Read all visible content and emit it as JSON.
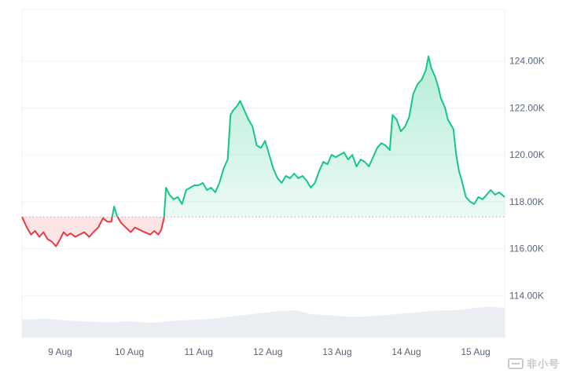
{
  "chart_data": {
    "type": "area",
    "baseline": 117350,
    "ylim": [
      112200,
      126200
    ],
    "y_ticks": [
      114000,
      116000,
      118000,
      120000,
      122000,
      124000
    ],
    "y_tick_labels": [
      "114.00K",
      "116.00K",
      "118.00K",
      "120.00K",
      "122.00K",
      "124.00K"
    ],
    "x_ticks": [
      "9 Aug",
      "10 Aug",
      "11 Aug",
      "12 Aug",
      "13 Aug",
      "14 Aug",
      "15 Aug"
    ],
    "x_range_days": [
      8.45,
      15.42
    ],
    "series": [
      {
        "values": [
          [
            8.45,
            117350
          ],
          [
            8.52,
            116900
          ],
          [
            8.58,
            116600
          ],
          [
            8.64,
            116750
          ],
          [
            8.7,
            116500
          ],
          [
            8.76,
            116700
          ],
          [
            8.82,
            116400
          ],
          [
            8.88,
            116300
          ],
          [
            8.94,
            116100
          ],
          [
            9.0,
            116400
          ],
          [
            9.05,
            116700
          ],
          [
            9.1,
            116550
          ],
          [
            9.15,
            116650
          ],
          [
            9.22,
            116500
          ],
          [
            9.28,
            116600
          ],
          [
            9.35,
            116700
          ],
          [
            9.42,
            116500
          ],
          [
            9.48,
            116700
          ],
          [
            9.55,
            116900
          ],
          [
            9.62,
            117300
          ],
          [
            9.68,
            117150
          ],
          [
            9.74,
            117150
          ],
          [
            9.78,
            117800
          ],
          [
            9.82,
            117400
          ],
          [
            9.88,
            117100
          ],
          [
            9.95,
            116900
          ],
          [
            10.02,
            116700
          ],
          [
            10.08,
            116900
          ],
          [
            10.15,
            116800
          ],
          [
            10.22,
            116700
          ],
          [
            10.3,
            116600
          ],
          [
            10.36,
            116750
          ],
          [
            10.42,
            116600
          ],
          [
            10.46,
            116800
          ],
          [
            10.5,
            117300
          ],
          [
            10.53,
            118600
          ],
          [
            10.58,
            118300
          ],
          [
            10.64,
            118100
          ],
          [
            10.7,
            118200
          ],
          [
            10.76,
            117900
          ],
          [
            10.82,
            118500
          ],
          [
            10.88,
            118600
          ],
          [
            10.94,
            118700
          ],
          [
            11.0,
            118700
          ],
          [
            11.06,
            118800
          ],
          [
            11.12,
            118500
          ],
          [
            11.18,
            118600
          ],
          [
            11.24,
            118400
          ],
          [
            11.3,
            118800
          ],
          [
            11.36,
            119400
          ],
          [
            11.42,
            119800
          ],
          [
            11.46,
            121700
          ],
          [
            11.5,
            121900
          ],
          [
            11.56,
            122100
          ],
          [
            11.6,
            122300
          ],
          [
            11.66,
            121900
          ],
          [
            11.72,
            121500
          ],
          [
            11.78,
            121200
          ],
          [
            11.84,
            120400
          ],
          [
            11.9,
            120300
          ],
          [
            11.96,
            120600
          ],
          [
            12.02,
            120000
          ],
          [
            12.08,
            119400
          ],
          [
            12.14,
            119000
          ],
          [
            12.2,
            118800
          ],
          [
            12.26,
            119100
          ],
          [
            12.32,
            119000
          ],
          [
            12.38,
            119200
          ],
          [
            12.44,
            119000
          ],
          [
            12.5,
            119100
          ],
          [
            12.56,
            118900
          ],
          [
            12.62,
            118600
          ],
          [
            12.68,
            118800
          ],
          [
            12.74,
            119300
          ],
          [
            12.8,
            119700
          ],
          [
            12.86,
            119600
          ],
          [
            12.92,
            120000
          ],
          [
            12.98,
            119900
          ],
          [
            13.04,
            120000
          ],
          [
            13.1,
            120100
          ],
          [
            13.16,
            119800
          ],
          [
            13.22,
            120000
          ],
          [
            13.28,
            119500
          ],
          [
            13.34,
            119800
          ],
          [
            13.4,
            119700
          ],
          [
            13.46,
            119500
          ],
          [
            13.52,
            119900
          ],
          [
            13.58,
            120300
          ],
          [
            13.64,
            120500
          ],
          [
            13.7,
            120400
          ],
          [
            13.76,
            120200
          ],
          [
            13.8,
            121700
          ],
          [
            13.86,
            121500
          ],
          [
            13.92,
            121000
          ],
          [
            13.98,
            121200
          ],
          [
            14.04,
            121600
          ],
          [
            14.1,
            122600
          ],
          [
            14.16,
            123000
          ],
          [
            14.22,
            123200
          ],
          [
            14.28,
            123600
          ],
          [
            14.32,
            124200
          ],
          [
            14.36,
            123700
          ],
          [
            14.42,
            123300
          ],
          [
            14.46,
            122900
          ],
          [
            14.5,
            122400
          ],
          [
            14.56,
            122000
          ],
          [
            14.6,
            121500
          ],
          [
            14.64,
            121300
          ],
          [
            14.68,
            121100
          ],
          [
            14.72,
            120000
          ],
          [
            14.76,
            119300
          ],
          [
            14.8,
            118900
          ],
          [
            14.86,
            118200
          ],
          [
            14.92,
            118000
          ],
          [
            14.98,
            117900
          ],
          [
            15.04,
            118200
          ],
          [
            15.1,
            118100
          ],
          [
            15.16,
            118300
          ],
          [
            15.22,
            118500
          ],
          [
            15.28,
            118300
          ],
          [
            15.34,
            118400
          ],
          [
            15.42,
            118200
          ]
        ]
      }
    ],
    "volume": [
      [
        8.45,
        0.6
      ],
      [
        8.8,
        0.64
      ],
      [
        9.1,
        0.58
      ],
      [
        9.4,
        0.54
      ],
      [
        9.7,
        0.52
      ],
      [
        10.0,
        0.55
      ],
      [
        10.3,
        0.5
      ],
      [
        10.6,
        0.56
      ],
      [
        10.9,
        0.6
      ],
      [
        11.2,
        0.64
      ],
      [
        11.5,
        0.72
      ],
      [
        11.8,
        0.8
      ],
      [
        12.1,
        0.88
      ],
      [
        12.4,
        0.92
      ],
      [
        12.6,
        0.8
      ],
      [
        12.9,
        0.75
      ],
      [
        13.2,
        0.7
      ],
      [
        13.5,
        0.72
      ],
      [
        13.8,
        0.78
      ],
      [
        14.1,
        0.84
      ],
      [
        14.4,
        0.9
      ],
      [
        14.7,
        0.92
      ],
      [
        15.0,
        1.0
      ],
      [
        15.2,
        1.04
      ],
      [
        15.42,
        1.0
      ]
    ],
    "colors": {
      "up": "#16c784",
      "down": "#ea3943",
      "grid": "#eff2f5",
      "baseline": "#a6b0c3",
      "volume": "#eaedf1",
      "label": "#58667e"
    }
  },
  "watermark": {
    "text": "非小号",
    "icon": "brand-logo-icon"
  }
}
